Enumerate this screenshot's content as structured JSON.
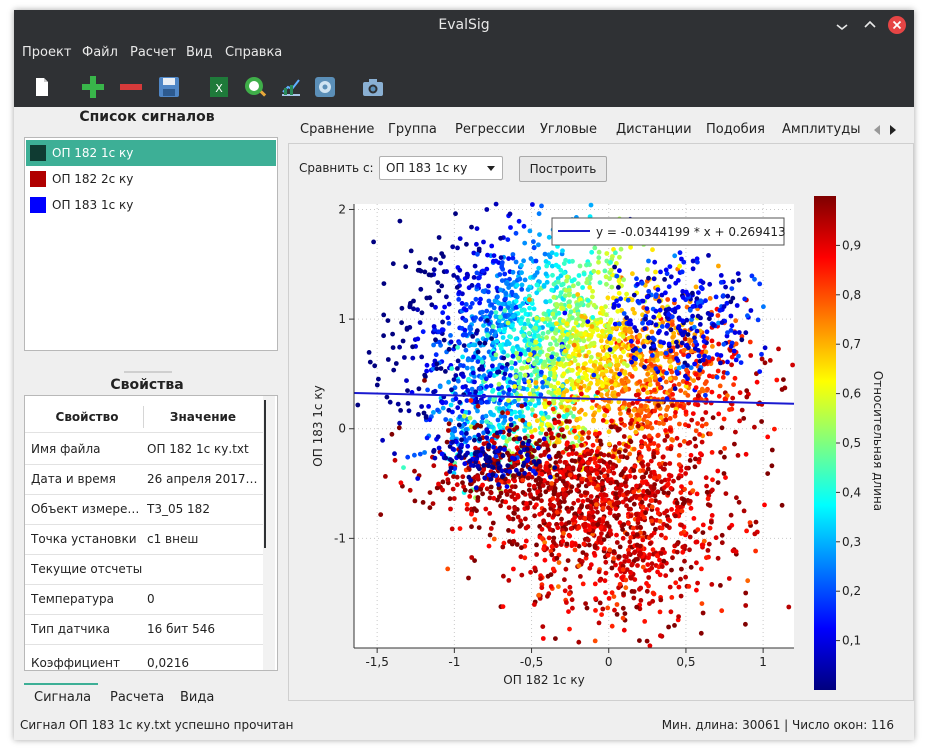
{
  "window": {
    "title": "EvalSig"
  },
  "menu": [
    "Проект",
    "Файл",
    "Расчет",
    "Вид",
    "Справка"
  ],
  "toolbar_icons": [
    "new-file-icon",
    "add-icon",
    "remove-icon",
    "save-icon",
    "excel-export-icon",
    "analysis-icon",
    "chart-icon",
    "settings-icon",
    "camera-icon"
  ],
  "signals_panel": {
    "title": "Список сигналов",
    "items": [
      {
        "label": "ОП 182 1с ку",
        "color": "#0f3b32",
        "selected": true
      },
      {
        "label": "ОП 182 2с ку",
        "color": "#b00000",
        "selected": false
      },
      {
        "label": "ОП 183 1с ку",
        "color": "#0000ff",
        "selected": false
      }
    ]
  },
  "properties_panel": {
    "title": "Свойства",
    "header": {
      "key": "Свойство",
      "value": "Значение"
    },
    "rows": [
      {
        "key": "Имя файла",
        "value": "ОП 182 1с ку.txt"
      },
      {
        "key": "Дата и время",
        "value": "26 апреля 2017 1..."
      },
      {
        "key": "Объект измерен...",
        "value": "Т3_05 182"
      },
      {
        "key": "Точка установки",
        "value": "с1 внеш"
      },
      {
        "key": "Текущие отсчеты",
        "value": ""
      },
      {
        "key": "Температура",
        "value": "0"
      },
      {
        "key": "Тип датчика",
        "value": "16 бит  546"
      },
      {
        "key": "Коэффициент",
        "value": "0,0216"
      }
    ]
  },
  "bottom_tabs": [
    "Сигнала",
    "Расчета",
    "Вида"
  ],
  "tabs": [
    "Сравнение",
    "Группа",
    "Регрессии",
    "Угловые",
    "Дистанции",
    "Подобия",
    "Амплитуды"
  ],
  "active_tab": "Регрессии",
  "compare": {
    "label": "Сравнить с:",
    "value": "ОП 183 1с ку",
    "button": "Построить"
  },
  "status": {
    "left": "Сигнал ОП 183 1с ку.txt успешно прочитан",
    "right": "Мин. длина: 30061 | Число окон: 116"
  },
  "chart_data": {
    "type": "scatter",
    "title": "",
    "xlabel": "ОП 182 1с ку",
    "ylabel": "ОП 183 1с ку",
    "xlim": [
      -1.65,
      1.2
    ],
    "ylim": [
      -2.0,
      2.05
    ],
    "x_ticks": [
      "-1,5",
      "-1",
      "-0,5",
      "0",
      "0,5",
      "1"
    ],
    "x_tick_values": [
      -1.5,
      -1,
      -0.5,
      0,
      0.5,
      1
    ],
    "y_ticks": [
      "-1",
      "0",
      "1",
      "2"
    ],
    "y_tick_values": [
      -1,
      0,
      1,
      2
    ],
    "grid": true,
    "regression": {
      "slope": -0.0344199,
      "intercept": 0.269413,
      "legend": "y = -0.0344199 * x + 0.269413",
      "color": "#1a1ad0"
    },
    "colorbar": {
      "label": "Относительная длина",
      "range": [
        0.0,
        1.0
      ],
      "ticks": [
        "0,1",
        "0,2",
        "0,3",
        "0,4",
        "0,5",
        "0,6",
        "0,7",
        "0,8",
        "0,9"
      ],
      "tick_values": [
        0.1,
        0.2,
        0.3,
        0.4,
        0.5,
        0.6,
        0.7,
        0.8,
        0.9
      ]
    },
    "clusters": [
      {
        "cx": -0.55,
        "cy": 0.95,
        "sx": 0.38,
        "sy": 0.42,
        "n": 1100,
        "c0": 0.36,
        "dcx": 0.5,
        "dcy": 0.2
      },
      {
        "cx": -0.7,
        "cy": 0.2,
        "sx": 0.3,
        "sy": 0.28,
        "n": 350,
        "c0": 0.25,
        "dcx": 0.4,
        "dcy": 0.4
      },
      {
        "cx": 0.15,
        "cy": 0.45,
        "sx": 0.38,
        "sy": 0.38,
        "n": 1000,
        "c0": 0.72,
        "dcx": 0.25,
        "dcy": 0.1
      },
      {
        "cx": 0.45,
        "cy": 1.0,
        "sx": 0.25,
        "sy": 0.3,
        "n": 300,
        "c0": 0.12,
        "dcx": 0.0,
        "dcy": 0.0
      },
      {
        "cx": -0.5,
        "cy": -0.45,
        "sx": 0.35,
        "sy": 0.25,
        "n": 500,
        "c0": 0.97,
        "dcx": 0.0,
        "dcy": 0.0
      },
      {
        "cx": 0.05,
        "cy": -0.85,
        "sx": 0.35,
        "sy": 0.45,
        "n": 1000,
        "c0": 0.92,
        "dcx": 0.0,
        "dcy": 0.0
      },
      {
        "cx": -0.8,
        "cy": -0.25,
        "sx": 0.2,
        "sy": 0.12,
        "n": 140,
        "c0": 0.05,
        "dcx": 0.0,
        "dcy": 0.0
      }
    ]
  }
}
